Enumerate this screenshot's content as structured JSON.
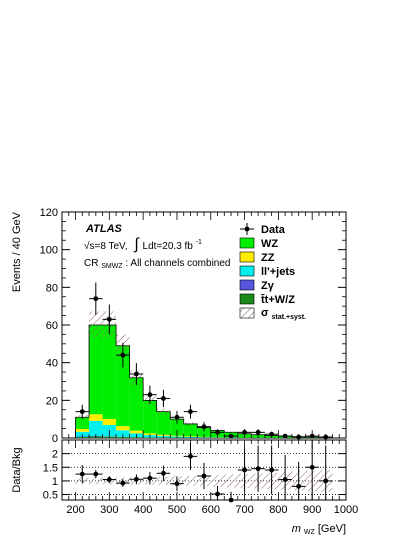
{
  "chart_data": {
    "type": "bar",
    "subtype": "stacked-histogram-with-ratio",
    "annotations": {
      "experiment": "ATLAS",
      "energy": "√s=8 TeV,",
      "lumi_int": "∫",
      "lumi": "Ldt=20.3 fb",
      "lumi_exp": "-1",
      "region_main": "CR",
      "region_sub": "SMWZ",
      "region_rest": ": All channels combined"
    },
    "main_axes": {
      "ylabel": "Events / 40 GeV",
      "ylim": [
        0,
        120
      ],
      "yticks": [
        "0",
        "20",
        "40",
        "60",
        "80",
        "100",
        "120"
      ]
    },
    "ratio_axes": {
      "ylabel": "Data/Bkg",
      "ylim": [
        0.3,
        2.5
      ],
      "yticks": [
        "0.5",
        "1",
        "1.5",
        "2"
      ],
      "dotted_lines": [
        0.5,
        1.0,
        1.5,
        2.0
      ]
    },
    "x_axis": {
      "label_main": "m",
      "label_sub": "WZ",
      "label_unit": " [GeV]",
      "xlim": [
        160,
        1000
      ],
      "xticks": [
        "200",
        "300",
        "400",
        "500",
        "600",
        "700",
        "800",
        "900",
        "1000"
      ]
    },
    "bin_edges": [
      200,
      240,
      280,
      320,
      360,
      400,
      440,
      480,
      520,
      560,
      600,
      640,
      680,
      720,
      760,
      800,
      840,
      880,
      920,
      960
    ],
    "series": [
      {
        "name": "t̄t+W/Z",
        "color": "#1a8a1a",
        "values": [
          0.5,
          0.8,
          0.7,
          0.5,
          0.4,
          0.3,
          0.25,
          0.2,
          0.15,
          0.12,
          0.1,
          0.08,
          0.07,
          0.06,
          0.05,
          0.04,
          0.03,
          0.03,
          0.02
        ]
      },
      {
        "name": "Zγ",
        "color": "#5555dd",
        "values": [
          0.3,
          0.3,
          0.2,
          0.1,
          0.1,
          0.05,
          0.05,
          0.03,
          0.02,
          0.02,
          0.01,
          0.01,
          0.01,
          0.01,
          0.01,
          0.0,
          0.0,
          0.0,
          0.0
        ]
      },
      {
        "name": "ll'+jets",
        "color": "#00f0f0",
        "values": [
          2.5,
          8.0,
          6.0,
          3.5,
          2.0,
          1.2,
          0.8,
          0.6,
          0.4,
          0.3,
          0.2,
          0.15,
          0.1,
          0.1,
          0.08,
          0.05,
          0.04,
          0.03,
          0.02
        ]
      },
      {
        "name": "ZZ",
        "color": "#ffee00",
        "values": [
          1.5,
          3.5,
          3.2,
          2.2,
          1.4,
          0.9,
          0.6,
          0.4,
          0.3,
          0.2,
          0.15,
          0.1,
          0.08,
          0.06,
          0.05,
          0.04,
          0.03,
          0.02,
          0.02
        ]
      },
      {
        "name": "WZ",
        "color": "#00ee00",
        "values": [
          6.2,
          47.4,
          49.9,
          42.7,
          28.1,
          17.5,
          12.3,
          8.8,
          6.6,
          4.9,
          3.5,
          2.7,
          2.0,
          1.5,
          1.1,
          0.9,
          0.6,
          0.4,
          0.3
        ]
      }
    ],
    "data": {
      "name": "Data",
      "x": [
        220,
        260,
        300,
        340,
        380,
        420,
        460,
        500,
        540,
        580,
        620,
        660,
        700,
        740,
        780,
        820,
        860,
        900,
        940
      ],
      "y": [
        14,
        74,
        63,
        44,
        34,
        23,
        21,
        11,
        14,
        6,
        3,
        1,
        3,
        3,
        2,
        1,
        0.5,
        1,
        0.5
      ],
      "yerr": [
        3.7,
        8.6,
        7.9,
        6.6,
        5.8,
        4.8,
        4.6,
        3.3,
        3.7,
        2.4,
        1.7,
        1.0,
        1.7,
        1.7,
        1.4,
        1.0,
        0.7,
        1.0,
        0.7
      ]
    },
    "ratio": {
      "y": [
        1.25,
        1.25,
        1.05,
        0.92,
        1.06,
        1.1,
        1.28,
        0.9,
        1.9,
        1.18,
        0.52,
        0.3,
        1.4,
        1.45,
        1.4,
        1.05,
        0.8,
        1.5,
        1.0
      ],
      "yerr": [
        0.33,
        0.15,
        0.13,
        0.14,
        0.18,
        0.23,
        0.28,
        0.27,
        0.5,
        0.48,
        0.3,
        0.3,
        0.8,
        0.85,
        0.9,
        0.9,
        0.9,
        1.2,
        1.3
      ],
      "band_halfwidth": [
        0.12,
        0.12,
        0.12,
        0.13,
        0.13,
        0.14,
        0.15,
        0.17,
        0.18,
        0.2,
        0.22,
        0.24,
        0.26,
        0.28,
        0.3,
        0.32,
        0.35,
        0.38,
        0.4
      ]
    },
    "uncertainty_band": {
      "name_main": "σ",
      "name_sub": "stat.+syst.",
      "relative": 0.12
    },
    "legend_order": [
      "Data",
      "WZ",
      "ZZ",
      "ll'+jets",
      "Zγ",
      "t̄t+W/Z",
      "band"
    ],
    "legend_position": "top-right",
    "grid": false
  }
}
